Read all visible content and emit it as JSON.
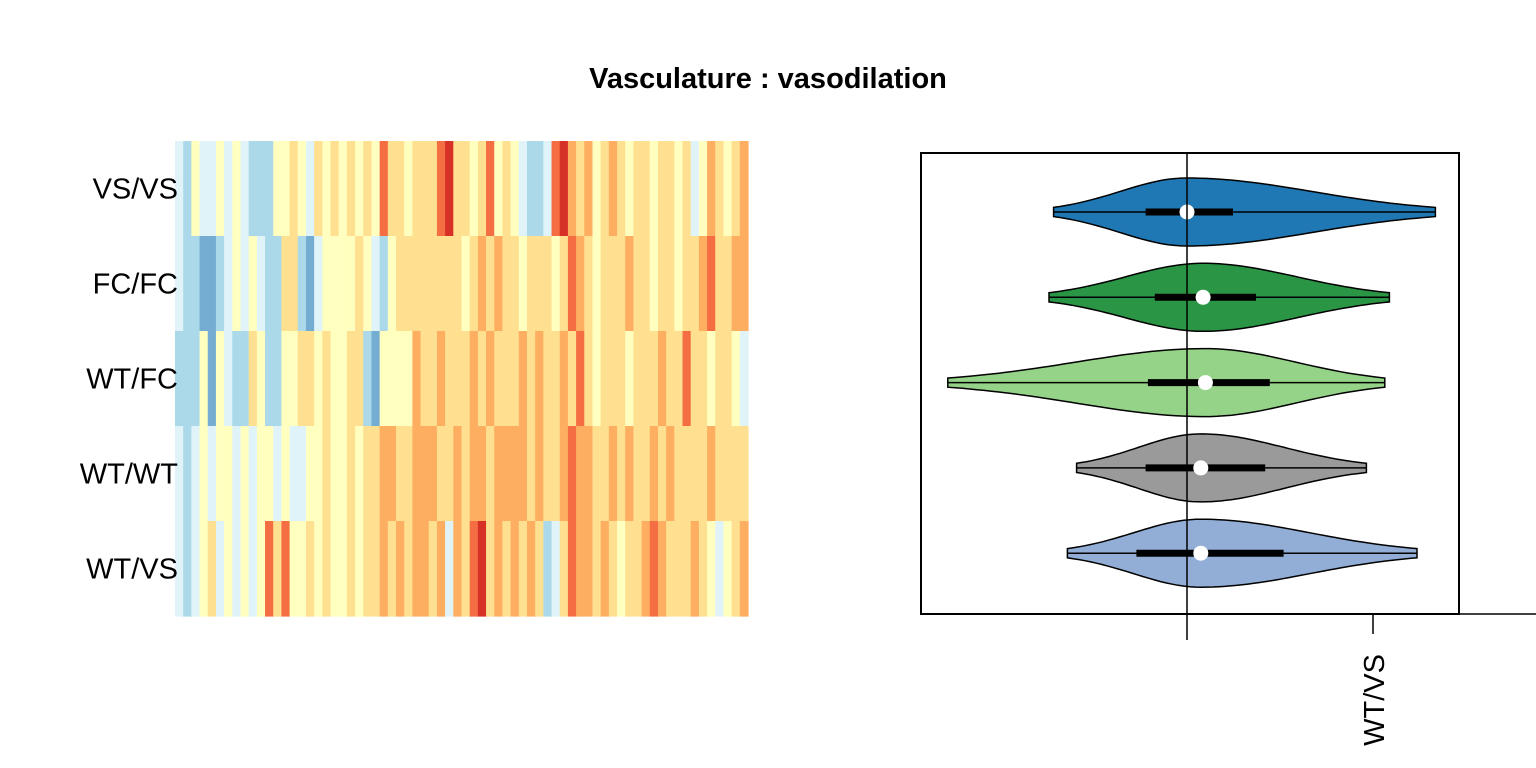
{
  "title": "Vasculature : vasodilation",
  "palette": {
    "heat": [
      "#313695",
      "#4575b4",
      "#74add1",
      "#abd9e9",
      "#e0f3f8",
      "#ffffbf",
      "#fee090",
      "#fdae61",
      "#f46d43",
      "#d73027",
      "#a50026"
    ]
  },
  "chart_data": [
    {
      "type": "heatmap",
      "rows": [
        "VS/VS",
        "FC/FC",
        "WT/FC",
        "WT/WT",
        "WT/VS"
      ],
      "n_columns": 70,
      "value_range": [
        0,
        10
      ],
      "matrix": [
        [
          4,
          3,
          5,
          4,
          4,
          5,
          4,
          5,
          4,
          3,
          3,
          3,
          5,
          5,
          6,
          5,
          4,
          6,
          5,
          6,
          5,
          6,
          5,
          6,
          5,
          8,
          6,
          6,
          5,
          6,
          6,
          6,
          8,
          9,
          6,
          6,
          5,
          6,
          8,
          5,
          6,
          5,
          4,
          3,
          3,
          4,
          8,
          9,
          7,
          6,
          7,
          5,
          6,
          7,
          6,
          5,
          6,
          6,
          5,
          6,
          6,
          5,
          6,
          4,
          5,
          7,
          6,
          5,
          6,
          7
        ],
        [
          4,
          3,
          3,
          2,
          2,
          3,
          4,
          5,
          4,
          5,
          4,
          3,
          3,
          6,
          6,
          3,
          2,
          4,
          5,
          5,
          5,
          5,
          6,
          5,
          4,
          3,
          5,
          6,
          6,
          6,
          6,
          6,
          6,
          6,
          6,
          5,
          6,
          7,
          6,
          7,
          6,
          6,
          5,
          6,
          6,
          6,
          5,
          6,
          8,
          7,
          6,
          5,
          6,
          6,
          6,
          7,
          6,
          6,
          5,
          6,
          6,
          5,
          6,
          6,
          7,
          8,
          6,
          6,
          7,
          7
        ],
        [
          3,
          3,
          3,
          5,
          2,
          5,
          4,
          3,
          3,
          6,
          5,
          3,
          3,
          5,
          5,
          6,
          6,
          5,
          6,
          5,
          5,
          6,
          6,
          3,
          2,
          5,
          5,
          5,
          5,
          7,
          6,
          6,
          7,
          6,
          6,
          6,
          7,
          6,
          7,
          6,
          6,
          6,
          7,
          6,
          7,
          6,
          6,
          7,
          6,
          8,
          6,
          5,
          6,
          6,
          6,
          5,
          6,
          6,
          6,
          7,
          6,
          6,
          8,
          6,
          6,
          5,
          6,
          6,
          5,
          4
        ],
        [
          4,
          3,
          4,
          5,
          4,
          5,
          5,
          4,
          5,
          4,
          5,
          5,
          4,
          5,
          4,
          4,
          5,
          5,
          6,
          5,
          5,
          6,
          5,
          6,
          6,
          7,
          7,
          6,
          6,
          7,
          7,
          7,
          6,
          6,
          7,
          6,
          7,
          7,
          6,
          7,
          7,
          7,
          7,
          6,
          7,
          6,
          6,
          7,
          8,
          7,
          7,
          6,
          6,
          7,
          6,
          7,
          6,
          6,
          7,
          6,
          7,
          6,
          6,
          6,
          6,
          7,
          6,
          6,
          6,
          6
        ],
        [
          4,
          3,
          4,
          5,
          6,
          4,
          5,
          4,
          5,
          4,
          5,
          8,
          6,
          8,
          5,
          5,
          6,
          5,
          6,
          5,
          5,
          6,
          5,
          6,
          6,
          7,
          6,
          7,
          6,
          7,
          7,
          6,
          7,
          4,
          7,
          6,
          8,
          9,
          6,
          7,
          6,
          7,
          6,
          7,
          6,
          3,
          4,
          6,
          8,
          7,
          7,
          6,
          7,
          6,
          5,
          6,
          6,
          7,
          8,
          7,
          6,
          6,
          6,
          7,
          6,
          5,
          4,
          5,
          6,
          7
        ]
      ]
    },
    {
      "type": "violin",
      "orientation": "horizontal",
      "reference_line": 0,
      "x_tick_labels": [
        "WT/VS"
      ],
      "groups": [
        {
          "name": "VS/VS",
          "color": "#1f78b4",
          "min": -2.9,
          "q1": -0.9,
          "median": 0.0,
          "q3": 1.0,
          "max": 5.4
        },
        {
          "name": "FC/FC",
          "color": "#2a9645",
          "min": -3.0,
          "q1": -0.7,
          "median": 0.35,
          "q3": 1.5,
          "max": 4.4
        },
        {
          "name": "WT/FC",
          "color": "#95d488",
          "min": -5.2,
          "q1": -0.85,
          "median": 0.4,
          "q3": 1.8,
          "max": 4.3
        },
        {
          "name": "WT/WT",
          "color": "#9a9a9a",
          "min": -2.4,
          "q1": -0.9,
          "median": 0.3,
          "q3": 1.7,
          "max": 3.9
        },
        {
          "name": "WT/VS",
          "color": "#92aed6",
          "min": -2.6,
          "q1": -1.1,
          "median": 0.3,
          "q3": 2.1,
          "max": 5.0
        }
      ]
    }
  ]
}
